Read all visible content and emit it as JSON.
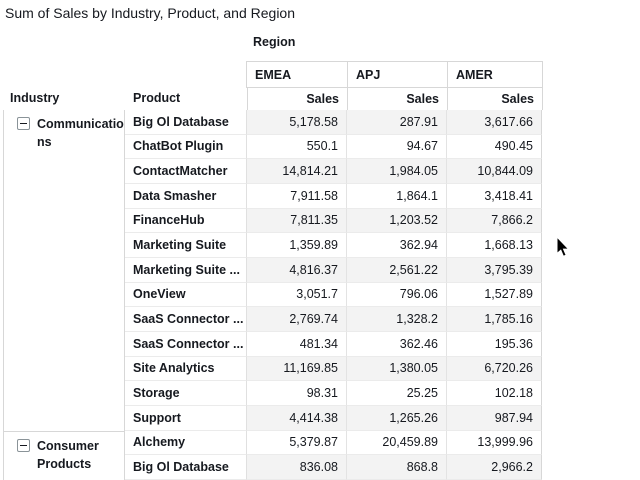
{
  "title": "Sum of Sales by Industry, Product, and Region",
  "pivot": {
    "column_dimension_label": "Region",
    "row_dimension_labels": {
      "industry": "Industry",
      "product": "Product"
    },
    "measure_label": "Sales",
    "columns": [
      "EMEA",
      "APJ",
      "AMER"
    ],
    "measure_headers": [
      "Sales",
      "Sales",
      "Sales"
    ],
    "groups": [
      {
        "industry": "Communications",
        "collapse_icon": "minus-square-icon",
        "rows": [
          {
            "product": "Big Ol Database",
            "values": [
              "5,178.58",
              "287.91",
              "3,617.66"
            ]
          },
          {
            "product": "ChatBot Plugin",
            "values": [
              "550.1",
              "94.67",
              "490.45"
            ]
          },
          {
            "product": "ContactMatcher",
            "values": [
              "14,814.21",
              "1,984.05",
              "10,844.09"
            ]
          },
          {
            "product": "Data Smasher",
            "values": [
              "7,911.58",
              "1,864.1",
              "3,418.41"
            ]
          },
          {
            "product": "FinanceHub",
            "values": [
              "7,811.35",
              "1,203.52",
              "7,866.2"
            ]
          },
          {
            "product": "Marketing Suite",
            "values": [
              "1,359.89",
              "362.94",
              "1,668.13"
            ]
          },
          {
            "product": "Marketing Suite ...",
            "values": [
              "4,816.37",
              "2,561.22",
              "3,795.39"
            ]
          },
          {
            "product": "OneView",
            "values": [
              "3,051.7",
              "796.06",
              "1,527.89"
            ]
          },
          {
            "product": "SaaS Connector ...",
            "values": [
              "2,769.74",
              "1,328.2",
              "1,785.16"
            ]
          },
          {
            "product": "SaaS Connector ...",
            "values": [
              "481.34",
              "362.46",
              "195.36"
            ]
          },
          {
            "product": "Site Analytics",
            "values": [
              "11,169.85",
              "1,380.05",
              "6,720.26"
            ]
          },
          {
            "product": "Storage",
            "values": [
              "98.31",
              "25.25",
              "102.18"
            ]
          },
          {
            "product": "Support",
            "values": [
              "4,414.38",
              "1,265.26",
              "987.94"
            ]
          }
        ]
      },
      {
        "industry": "Consumer Products",
        "collapse_icon": "minus-square-icon",
        "rows": [
          {
            "product": "Alchemy",
            "values": [
              "5,379.87",
              "20,459.89",
              "13,999.96"
            ]
          },
          {
            "product": "Big Ol Database",
            "values": [
              "836.08",
              "868.8",
              "2,966.2"
            ]
          }
        ]
      }
    ]
  },
  "colors": {
    "text": "#16191f",
    "background": "#ffffff",
    "table_border": "#d7d7d7",
    "row_border": "#ebebeb",
    "row_stripe": "#f3f3f3"
  }
}
